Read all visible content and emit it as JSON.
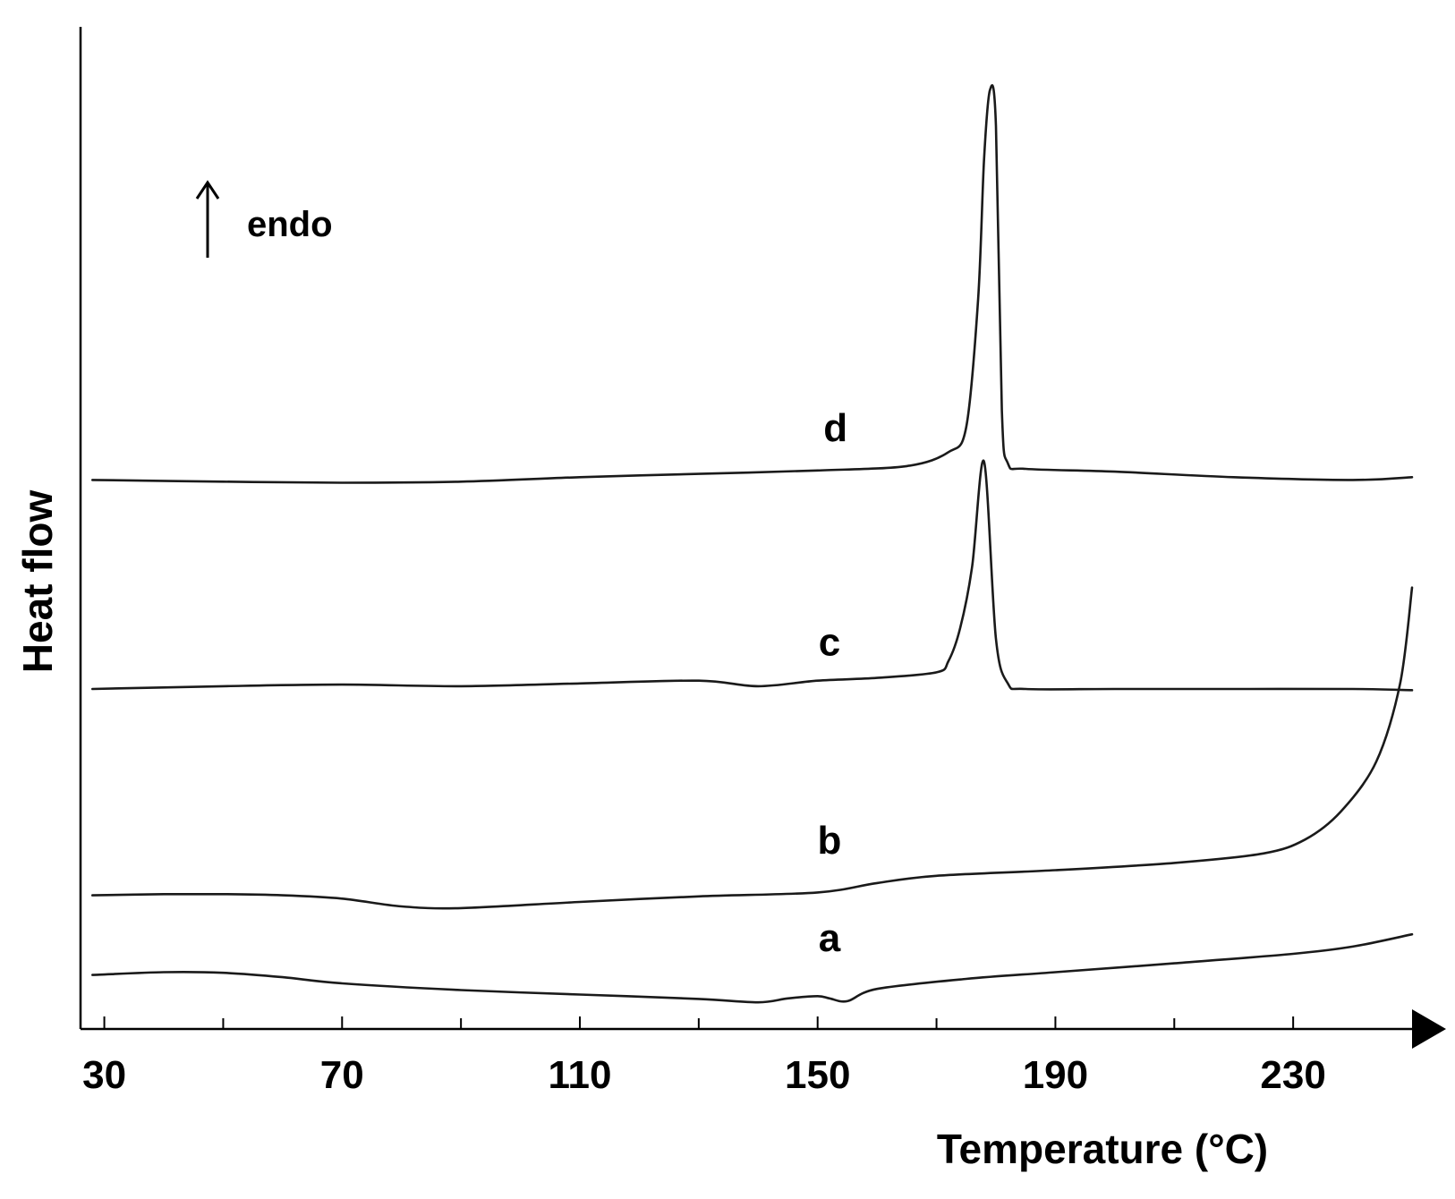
{
  "chart_data": {
    "type": "line",
    "xlabel": "Temperature (°C)",
    "ylabel": "Heat flow",
    "annotation": "endo",
    "annotation_arrow": "up",
    "xlim": [
      26,
      250
    ],
    "x_ticks": [
      30,
      70,
      110,
      150,
      190,
      230
    ],
    "x_minor_ticks": [
      50,
      90,
      130,
      170,
      210
    ],
    "y_ticks": [],
    "grid": false,
    "legend": "none",
    "series": [
      {
        "name": "a",
        "x": [
          28,
          40,
          50,
          60,
          70,
          90,
          110,
          130,
          140,
          145,
          150,
          152,
          155,
          160,
          175,
          190,
          210,
          230,
          240,
          250
        ],
        "y": [
          1.37,
          1.42,
          1.41,
          1.33,
          1.22,
          1.1,
          1.02,
          0.94,
          0.88,
          0.95,
          0.99,
          0.95,
          0.9,
          1.12,
          1.3,
          1.42,
          1.58,
          1.75,
          1.88,
          2.1
        ]
      },
      {
        "name": "b",
        "x": [
          28,
          40,
          50,
          60,
          70,
          80,
          90,
          110,
          130,
          150,
          160,
          170,
          190,
          210,
          225,
          232,
          238,
          244,
          248,
          250
        ],
        "y": [
          2.8,
          2.82,
          2.82,
          2.8,
          2.74,
          2.6,
          2.57,
          2.68,
          2.78,
          2.85,
          3.02,
          3.15,
          3.25,
          3.38,
          3.55,
          3.8,
          4.3,
          5.2,
          6.6,
          8.32
        ]
      },
      {
        "name": "c",
        "x": [
          28,
          50,
          70,
          90,
          110,
          130,
          140,
          150,
          160,
          170,
          172,
          174,
          176,
          178,
          180,
          182,
          185,
          200,
          220,
          240,
          250
        ],
        "y": [
          6.5,
          6.55,
          6.58,
          6.55,
          6.6,
          6.65,
          6.55,
          6.65,
          6.7,
          6.8,
          7.0,
          7.6,
          8.7,
          10.58,
          7.4,
          6.6,
          6.5,
          6.5,
          6.5,
          6.5,
          6.48
        ]
      },
      {
        "name": "d",
        "x": [
          28,
          50,
          70,
          90,
          110,
          130,
          150,
          165,
          172,
          175,
          177,
          178,
          179,
          180,
          181,
          182,
          185,
          200,
          220,
          240,
          250
        ],
        "y": [
          10.25,
          10.22,
          10.2,
          10.22,
          10.3,
          10.36,
          10.42,
          10.5,
          10.75,
          11.2,
          13.5,
          16.0,
          17.25,
          16.6,
          11.5,
          10.55,
          10.45,
          10.4,
          10.3,
          10.25,
          10.3
        ]
      }
    ]
  }
}
